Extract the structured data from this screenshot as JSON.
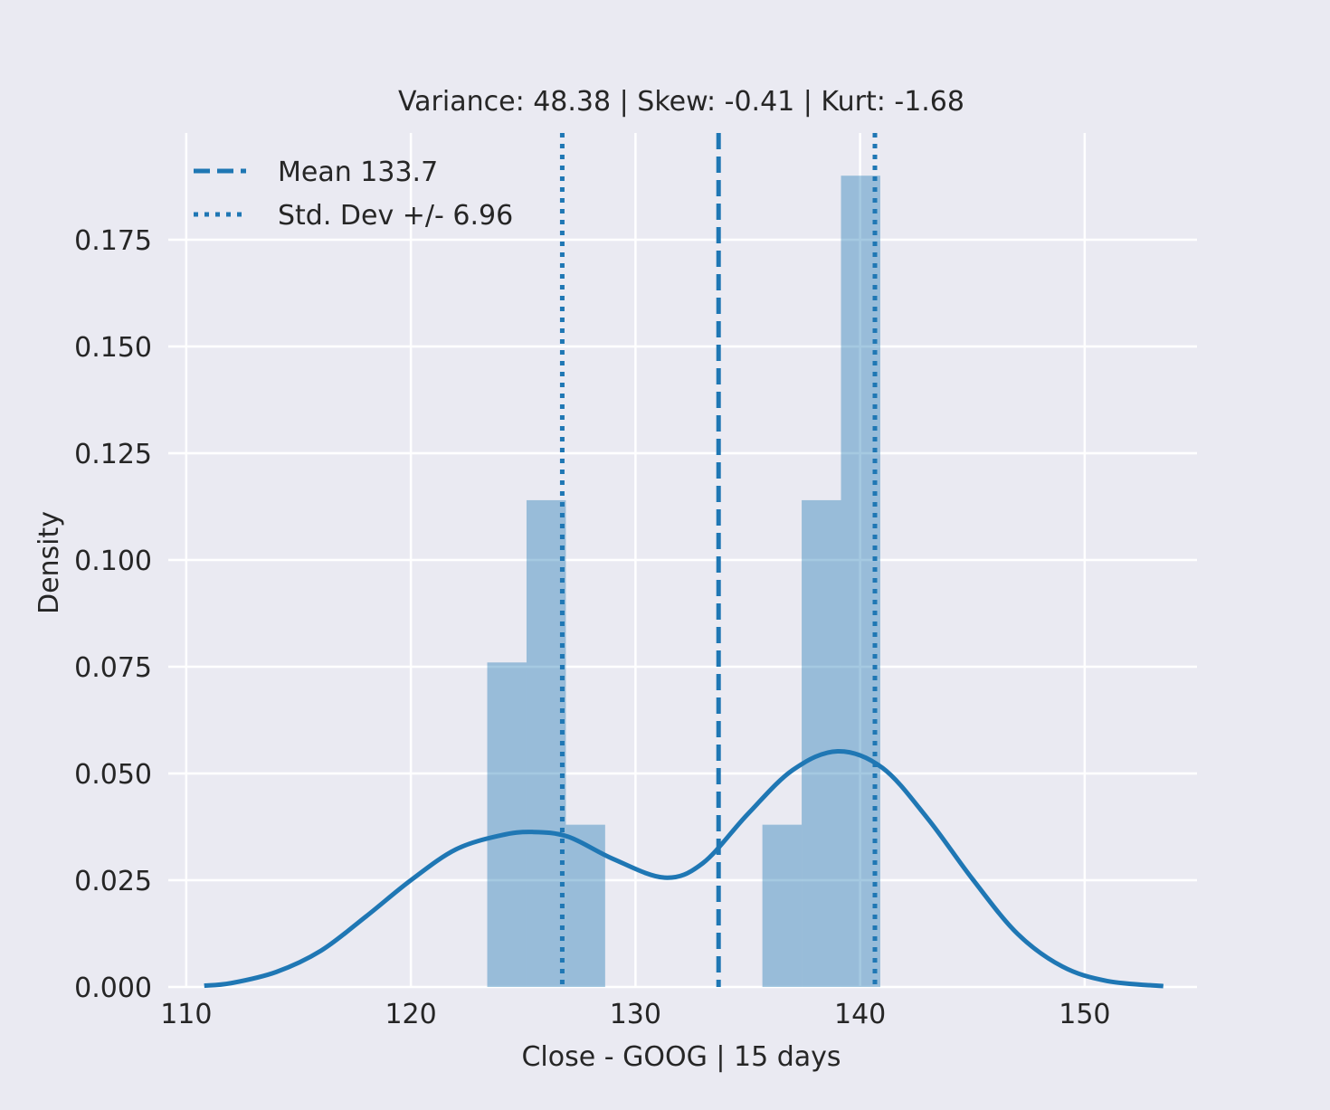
{
  "chart_data": {
    "type": "histogram",
    "title": "Variance: 48.38 | Skew: -0.41 | Kurt: -1.68",
    "xlabel": "Close - GOOG | 15 days",
    "ylabel": "Density",
    "xlim": [
      109.2,
      155.0
    ],
    "ylim": [
      0.0,
      0.2
    ],
    "xticks": [
      110,
      120,
      130,
      140,
      150
    ],
    "yticks": [
      0.0,
      0.025,
      0.05,
      0.075,
      0.1,
      0.125,
      0.15,
      0.175
    ],
    "ytick_labels": [
      "0.000",
      "0.025",
      "0.050",
      "0.075",
      "0.100",
      "0.125",
      "0.150",
      "0.175"
    ],
    "grid": true,
    "histogram": {
      "bin_edges": [
        123.4,
        125.15,
        126.9,
        128.65,
        130.4,
        132.15,
        133.9,
        135.65,
        137.4,
        139.15,
        140.9
      ],
      "densities": [
        0.076,
        0.114,
        0.038,
        0.0,
        0.0,
        0.0,
        0.0,
        0.038,
        0.114,
        0.19
      ],
      "color": "#1f77b4",
      "alpha": 0.4
    },
    "kde": {
      "color": "#1f77b4",
      "x": [
        110.8,
        112,
        114,
        116,
        118,
        120,
        122,
        124,
        125.4,
        127,
        129,
        131.3,
        133,
        135,
        137,
        139,
        141,
        143,
        145,
        147,
        149,
        151,
        153.5
      ],
      "y": [
        0.0003,
        0.0009,
        0.0035,
        0.0085,
        0.0165,
        0.025,
        0.0322,
        0.0355,
        0.0363,
        0.0352,
        0.03,
        0.0256,
        0.029,
        0.0405,
        0.0508,
        0.0552,
        0.0513,
        0.0395,
        0.0253,
        0.0125,
        0.0048,
        0.0014,
        0.0002
      ]
    },
    "mean": {
      "value": 133.7,
      "label": "Mean 133.7",
      "style": "dashed"
    },
    "std": {
      "value": 6.96,
      "lines": [
        126.74,
        140.66
      ],
      "label": "Std. Dev +/- 6.96",
      "style": "dotted"
    },
    "legend": {
      "placement": "top-left"
    }
  }
}
